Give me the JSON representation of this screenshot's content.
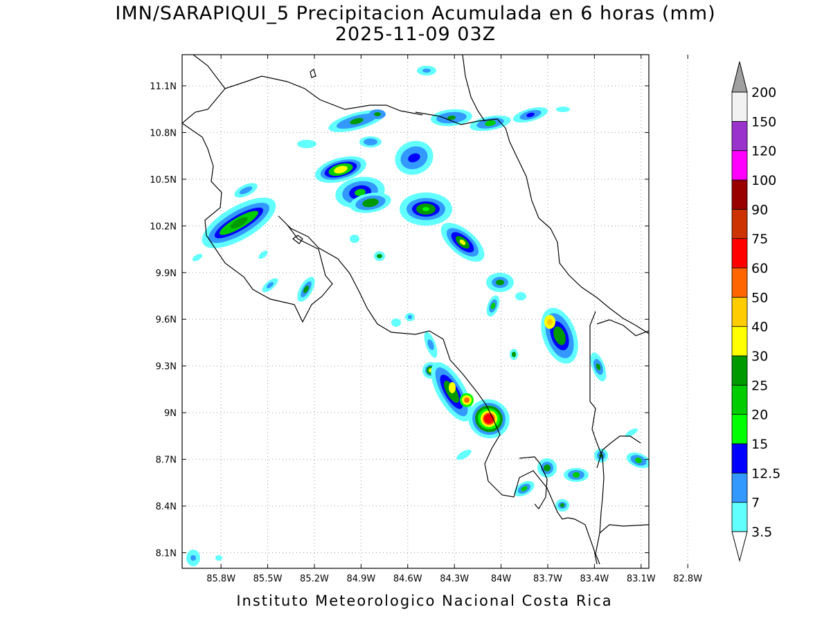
{
  "title": "IMN/SARAPIQUI_5 Precipitacion Acumulada en 6 horas (mm)",
  "subtitle": "2025-11-09 03Z",
  "credit": "Instituto Meteorologico Nacional Costa Rica",
  "map": {
    "lon_range": [
      -86.05,
      -83.05
    ],
    "lat_range": [
      8.0,
      11.3
    ],
    "lon_ticks": [
      {
        "value": -85.8,
        "label": "85.8W"
      },
      {
        "value": -85.5,
        "label": "85.5W"
      },
      {
        "value": -85.2,
        "label": "85.2W"
      },
      {
        "value": -84.9,
        "label": "84.9W"
      },
      {
        "value": -84.6,
        "label": "84.6W"
      },
      {
        "value": -84.3,
        "label": "84.3W"
      },
      {
        "value": -84.0,
        "label": "84W"
      },
      {
        "value": -83.7,
        "label": "83.7W"
      },
      {
        "value": -83.4,
        "label": "83.4W"
      },
      {
        "value": -83.1,
        "label": "83.1W"
      },
      {
        "value": -82.8,
        "label": "82.8W"
      }
    ],
    "lat_ticks": [
      {
        "value": 11.1,
        "label": "11.1N"
      },
      {
        "value": 10.8,
        "label": "10.8N"
      },
      {
        "value": 10.5,
        "label": "10.5N"
      },
      {
        "value": 10.2,
        "label": "10.2N"
      },
      {
        "value": 9.9,
        "label": "9.9N"
      },
      {
        "value": 9.6,
        "label": "9.6N"
      },
      {
        "value": 9.3,
        "label": "9.3N"
      },
      {
        "value": 9.0,
        "label": "9N"
      },
      {
        "value": 8.7,
        "label": "8.7N"
      },
      {
        "value": 8.4,
        "label": "8.4N"
      },
      {
        "value": 8.1,
        "label": "8.1N"
      }
    ],
    "grid": true
  },
  "colorbar": {
    "labels": [
      "3.5",
      "7",
      "12.5",
      "15",
      "20",
      "25",
      "30",
      "40",
      "50",
      "60",
      "75",
      "90",
      "100",
      "120",
      "150",
      "200"
    ],
    "colors": [
      "#61fffe",
      "#3399ff",
      "#0000ff",
      "#00ff00",
      "#00cc00",
      "#009900",
      "#ffff00",
      "#ffcc00",
      "#ff6600",
      "#ff0000",
      "#cc3300",
      "#990000",
      "#ff00ff",
      "#9933cc",
      "#f2f2f2"
    ],
    "top_arrow_color": "#a0a0a0",
    "bottom_arrow_color": "#ffffff"
  }
}
